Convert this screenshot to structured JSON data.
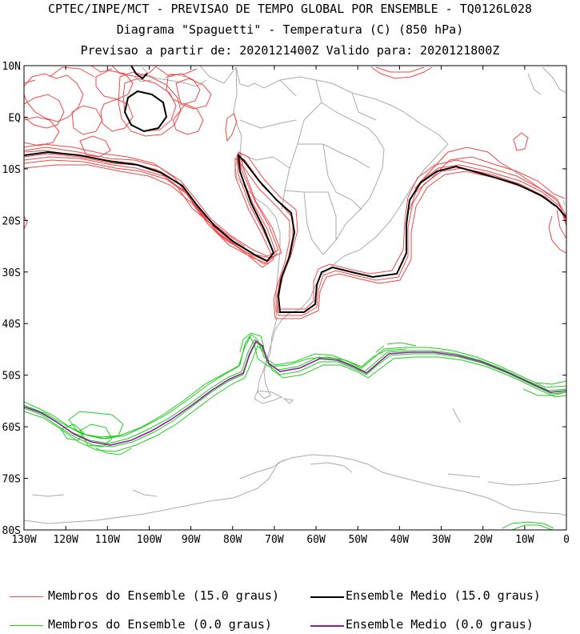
{
  "header": {
    "line1": "CPTEC/INPE/MCT - PREVISAO DE TEMPO GLOBAL POR ENSEMBLE - TQ0126L028",
    "line2": "Diagrama \"Spaguetti\" - Temperatura (C) (850 hPa)",
    "line3": "Previsao a partir de: 2020121400Z  Valido para: 2020121800Z"
  },
  "map": {
    "lat_labels": [
      "10N",
      "EQ",
      "10S",
      "20S",
      "30S",
      "40S",
      "50S",
      "60S",
      "70S",
      "80S"
    ],
    "lon_labels": [
      "130W",
      "120W",
      "110W",
      "100W",
      "90W",
      "80W",
      "70W",
      "60W",
      "50W",
      "40W",
      "30W",
      "20W",
      "10W",
      "0"
    ],
    "colors": {
      "member15": "#f04848",
      "mean15": "#000000",
      "member0": "#22cc22",
      "mean0": "#9020a0",
      "land": "#aaaaaa"
    }
  },
  "legend": {
    "item1": "Membros do Ensemble (15.0 graus)",
    "item2": "Ensemble Medio (15.0 graus)",
    "item3": "Membros do Ensemble (0.0 graus)",
    "item4": "Ensemble Medio (0.0 graus)"
  }
}
